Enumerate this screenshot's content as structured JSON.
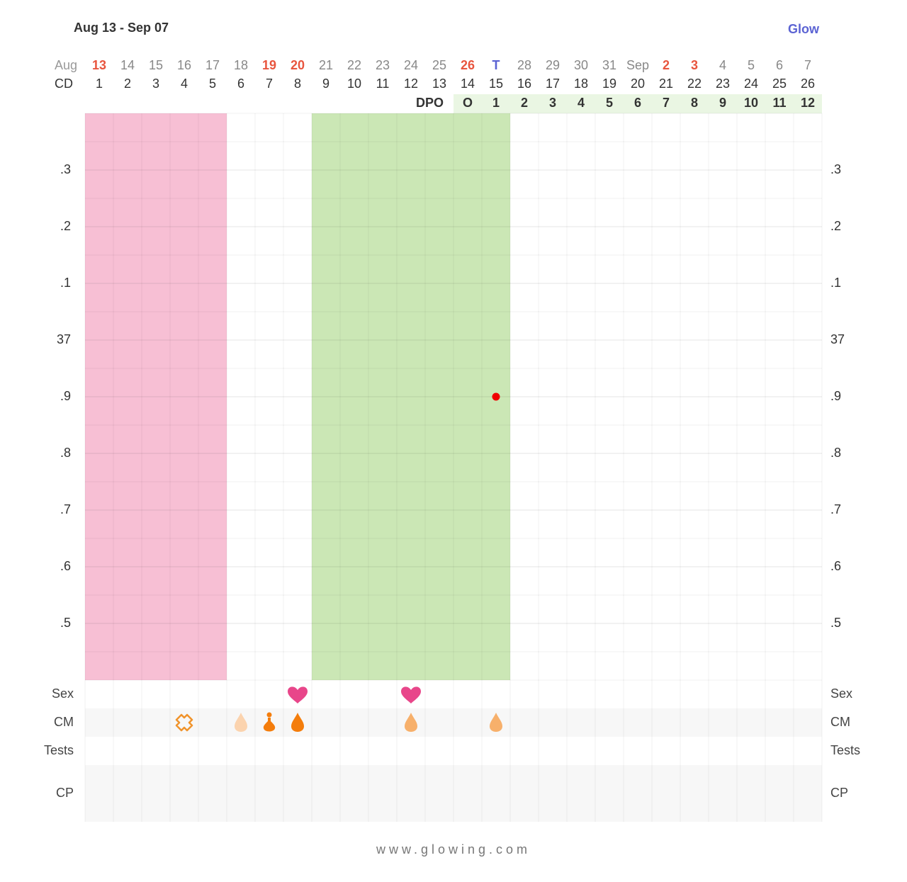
{
  "chart_data": {
    "type": "scatter",
    "title": "Aug 13 - Sep 07",
    "logo": "Glow",
    "footer": "www.glowing.com",
    "month_label": "Aug",
    "dates": [
      "13",
      "14",
      "15",
      "16",
      "17",
      "18",
      "19",
      "20",
      "21",
      "22",
      "23",
      "24",
      "25",
      "26",
      "T",
      "28",
      "29",
      "30",
      "31",
      "Sep",
      "2",
      "3",
      "4",
      "5",
      "6",
      "7"
    ],
    "date_colors": [
      "#e8553e",
      "#888",
      "#888",
      "#888",
      "#888",
      "#888",
      "#e8553e",
      "#e8553e",
      "#888",
      "#888",
      "#888",
      "#888",
      "#888",
      "#e8553e",
      "#5b63d3",
      "#888",
      "#888",
      "#888",
      "#888",
      "#888",
      "#e8553e",
      "#e8553e",
      "#888",
      "#888",
      "#888",
      "#888"
    ],
    "cd_label": "CD",
    "cd": [
      1,
      2,
      3,
      4,
      5,
      6,
      7,
      8,
      9,
      10,
      11,
      12,
      13,
      14,
      15,
      16,
      17,
      18,
      19,
      20,
      21,
      22,
      23,
      24,
      25,
      26
    ],
    "dpo": {
      "label": "DPO",
      "start_cd": 14,
      "values": [
        "O",
        1,
        2,
        3,
        4,
        5,
        6,
        7,
        8,
        9,
        10,
        11,
        12
      ],
      "color": "#eaf6e3"
    },
    "period": {
      "start_cd": 1,
      "end_cd": 5,
      "color": "#f7bfd4"
    },
    "fertile": {
      "start_cd": 9,
      "end_cd": 15,
      "color": "#cbe7b5"
    },
    "series": [
      {
        "name": "Temperature",
        "color": "#f00000",
        "values": [
          null,
          null,
          null,
          null,
          null,
          null,
          null,
          null,
          null,
          null,
          null,
          null,
          null,
          null,
          36.9,
          null,
          null,
          null,
          null,
          null,
          null,
          null,
          null,
          null,
          null,
          null
        ]
      }
    ],
    "ylim": [
      36.4,
      37.4
    ],
    "yticks": [
      {
        "value": 37.3,
        "label": ".3"
      },
      {
        "value": 37.2,
        "label": ".2"
      },
      {
        "value": 37.1,
        "label": ".1"
      },
      37,
      {
        "value": 36.9,
        "label": ".9"
      },
      {
        "value": 36.8,
        "label": ".8"
      },
      {
        "value": 36.7,
        "label": ".7"
      },
      {
        "value": 36.6,
        "label": ".6"
      },
      {
        "value": 36.5,
        "label": ".5"
      }
    ],
    "grid": true,
    "rows": {
      "sex": {
        "label": "Sex",
        "cd": [
          8,
          12
        ],
        "color": "#e8468a"
      },
      "cm": {
        "label": "CM",
        "items": [
          {
            "cd": 4,
            "shape": "cross",
            "color": "#f0932b"
          },
          {
            "cd": 6,
            "shape": "drop",
            "color": "#fbd3ae"
          },
          {
            "cd": 7,
            "shape": "pin",
            "color": "#f47d0c"
          },
          {
            "cd": 8,
            "shape": "drop",
            "color": "#f47d0c"
          },
          {
            "cd": 12,
            "shape": "drop",
            "color": "#f7b06b"
          },
          {
            "cd": 15,
            "shape": "drop",
            "color": "#f7b06b"
          }
        ]
      },
      "tests": {
        "label": "Tests"
      },
      "cp": {
        "label": "CP"
      }
    }
  }
}
